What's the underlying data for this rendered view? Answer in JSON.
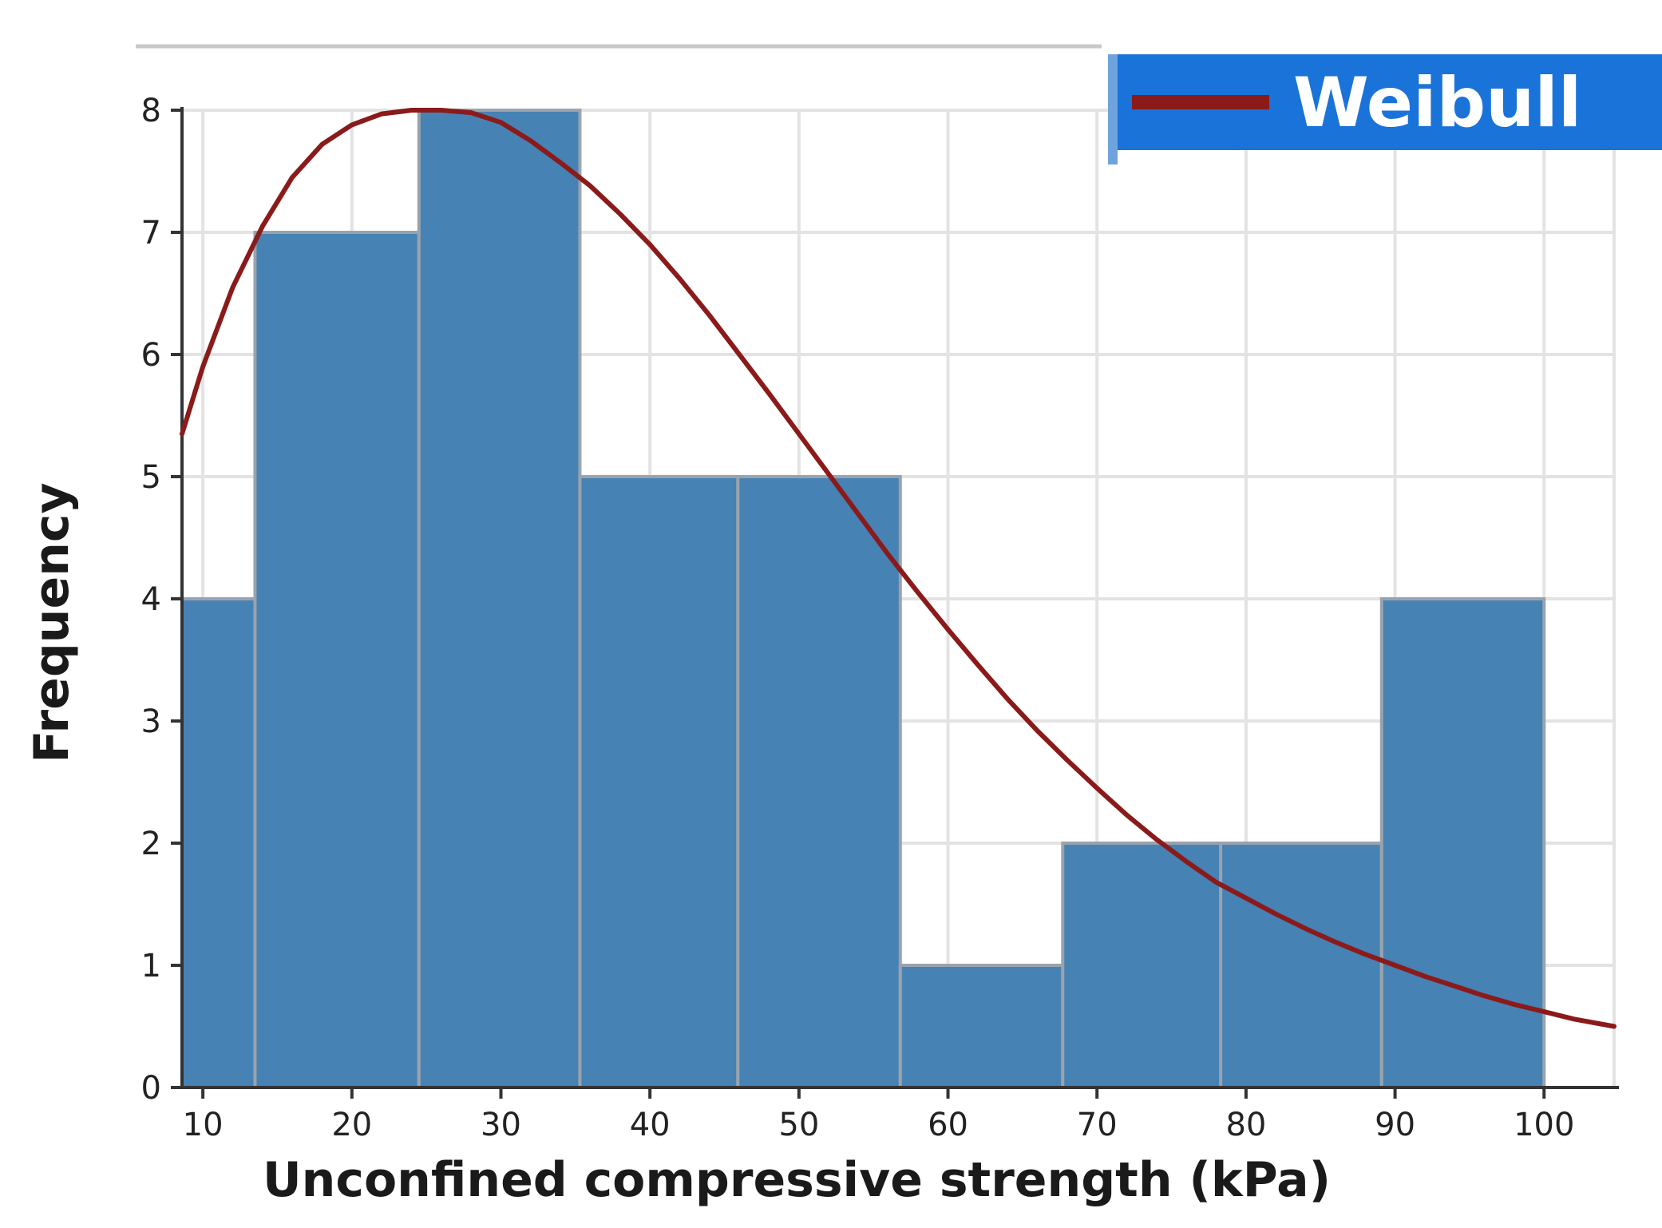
{
  "chart_data": {
    "type": "bar",
    "title": "",
    "xlabel": "Unconfined compressive strength (kPa)",
    "ylabel": "Frequency",
    "xlim": [
      8.6,
      104.7
    ],
    "ylim": [
      0,
      8
    ],
    "xticks": [
      10,
      20,
      30,
      40,
      50,
      60,
      70,
      80,
      90,
      100
    ],
    "yticks": [
      0,
      1,
      2,
      3,
      4,
      5,
      6,
      7,
      8
    ],
    "grid": true,
    "legend_position": "top-right",
    "bins": [
      {
        "from": 8.6,
        "to": 13.5,
        "value": 4
      },
      {
        "from": 13.5,
        "to": 24.5,
        "value": 7
      },
      {
        "from": 24.5,
        "to": 35.3,
        "value": 8
      },
      {
        "from": 35.3,
        "to": 45.9,
        "value": 5
      },
      {
        "from": 45.9,
        "to": 56.8,
        "value": 5
      },
      {
        "from": 56.8,
        "to": 67.7,
        "value": 1
      },
      {
        "from": 67.7,
        "to": 78.3,
        "value": 2
      },
      {
        "from": 78.3,
        "to": 89.1,
        "value": 2
      },
      {
        "from": 89.1,
        "to": 100,
        "value": 4
      }
    ],
    "series": [
      {
        "name": "Weibull",
        "type": "line",
        "color": "#8b1a1a",
        "points": [
          [
            8.6,
            5.35
          ],
          [
            10,
            5.9
          ],
          [
            12,
            6.55
          ],
          [
            14,
            7.05
          ],
          [
            16,
            7.45
          ],
          [
            18,
            7.72
          ],
          [
            20,
            7.88
          ],
          [
            22,
            7.97
          ],
          [
            24,
            8.0
          ],
          [
            26,
            8.0
          ],
          [
            28,
            7.98
          ],
          [
            30,
            7.9
          ],
          [
            32,
            7.75
          ],
          [
            34,
            7.57
          ],
          [
            36,
            7.38
          ],
          [
            38,
            7.15
          ],
          [
            40,
            6.9
          ],
          [
            42,
            6.62
          ],
          [
            44,
            6.32
          ],
          [
            46,
            6.0
          ],
          [
            48,
            5.68
          ],
          [
            50,
            5.35
          ],
          [
            52,
            5.02
          ],
          [
            54,
            4.69
          ],
          [
            56,
            4.36
          ],
          [
            58,
            4.05
          ],
          [
            60,
            3.75
          ],
          [
            62,
            3.46
          ],
          [
            64,
            3.18
          ],
          [
            66,
            2.92
          ],
          [
            68,
            2.68
          ],
          [
            70,
            2.45
          ],
          [
            72,
            2.23
          ],
          [
            74,
            2.03
          ],
          [
            76,
            1.85
          ],
          [
            78,
            1.68
          ],
          [
            80,
            1.55
          ],
          [
            82,
            1.42
          ],
          [
            84,
            1.3
          ],
          [
            86,
            1.19
          ],
          [
            88,
            1.09
          ],
          [
            90,
            1.0
          ],
          [
            92,
            0.91
          ],
          [
            94,
            0.83
          ],
          [
            96,
            0.75
          ],
          [
            98,
            0.68
          ],
          [
            100,
            0.62
          ],
          [
            102,
            0.56
          ],
          [
            104.7,
            0.5
          ]
        ]
      }
    ],
    "bar_color": "#4682b4"
  },
  "legend": {
    "label": "Weibull",
    "background": "#1a73d9",
    "line_color": "#8b1a1a"
  }
}
